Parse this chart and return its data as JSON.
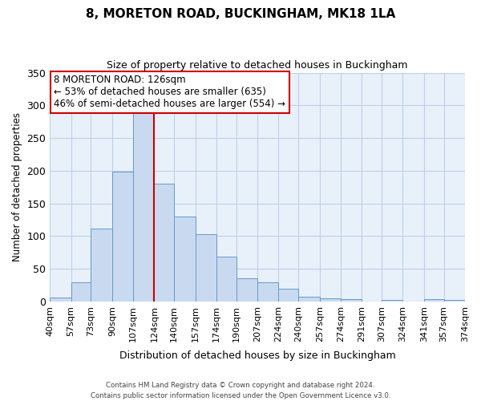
{
  "title": "8, MORETON ROAD, BUCKINGHAM, MK18 1LA",
  "subtitle": "Size of property relative to detached houses in Buckingham",
  "xlabel": "Distribution of detached houses by size in Buckingham",
  "ylabel": "Number of detached properties",
  "bar_edges": [
    40,
    57,
    73,
    90,
    107,
    124,
    140,
    157,
    174,
    190,
    207,
    224,
    240,
    257,
    274,
    291,
    307,
    324,
    341,
    357,
    374
  ],
  "bar_values": [
    6,
    29,
    111,
    199,
    290,
    180,
    130,
    103,
    68,
    36,
    29,
    19,
    7,
    5,
    4,
    0,
    2,
    0,
    3,
    2
  ],
  "bar_color": "#c9daf0",
  "bar_edge_color": "#6699cc",
  "vline_x": 124,
  "vline_color": "#cc0000",
  "ylim": [
    0,
    350
  ],
  "yticks": [
    0,
    50,
    100,
    150,
    200,
    250,
    300,
    350
  ],
  "annotation_title": "8 MORETON ROAD: 126sqm",
  "annotation_line1": "← 53% of detached houses are smaller (635)",
  "annotation_line2": "46% of semi-detached houses are larger (554) →",
  "annotation_box_color": "#ffffff",
  "annotation_box_edge": "#cc0000",
  "footer1": "Contains HM Land Registry data © Crown copyright and database right 2024.",
  "footer2": "Contains public sector information licensed under the Open Government Licence v3.0.",
  "bg_color": "#ffffff",
  "plot_bg_color": "#e8f0fa",
  "grid_color": "#c0cfe8"
}
